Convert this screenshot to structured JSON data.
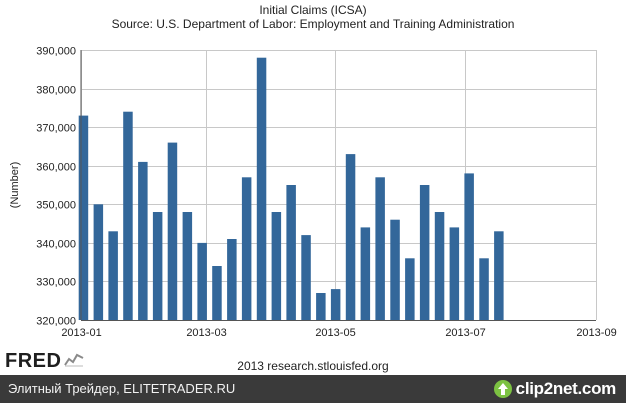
{
  "chart_data": {
    "type": "bar",
    "title": "Initial Claims (ICSA)",
    "subtitle": "Source: U.S. Department of Labor: Employment and Training Administration",
    "ylabel": "(Number)",
    "xlabel": "",
    "ylim": [
      320000,
      390000
    ],
    "y_ticks": [
      320000,
      330000,
      340000,
      350000,
      360000,
      370000,
      380000,
      390000
    ],
    "y_tick_labels": [
      "320,000",
      "330,000",
      "340,000",
      "350,000",
      "360,000",
      "370,000",
      "380,000",
      "390,000"
    ],
    "x_ticks": [
      "2013-01-01",
      "2013-03-01",
      "2013-05-01",
      "2013-07-01",
      "2013-09-01"
    ],
    "x_tick_labels": [
      "2013-01",
      "2013-03",
      "2013-05",
      "2013-07",
      "2013-09"
    ],
    "xlim": [
      "2013-01-01",
      "2013-09-01"
    ],
    "grid": true,
    "bar_color": "#33679a",
    "categories": [
      "2013-01-05",
      "2013-01-12",
      "2013-01-19",
      "2013-01-26",
      "2013-02-02",
      "2013-02-09",
      "2013-02-16",
      "2013-02-23",
      "2013-03-02",
      "2013-03-09",
      "2013-03-16",
      "2013-03-23",
      "2013-03-30",
      "2013-04-06",
      "2013-04-13",
      "2013-04-20",
      "2013-04-27",
      "2013-05-04",
      "2013-05-11",
      "2013-05-18",
      "2013-05-25",
      "2013-06-01",
      "2013-06-08",
      "2013-06-15",
      "2013-06-22",
      "2013-06-29",
      "2013-07-06",
      "2013-07-13",
      "2013-07-20",
      "2013-07-27"
    ],
    "values": [
      373000,
      350000,
      343000,
      374000,
      361000,
      348000,
      366000,
      348000,
      340000,
      334000,
      341000,
      357000,
      388000,
      348000,
      355000,
      342000,
      327000,
      328000,
      363000,
      344000,
      357000,
      346000,
      336000,
      355000,
      348000,
      344000,
      358000,
      336000,
      343000,
      null
    ]
  },
  "branding": {
    "fred_logo": "FRED",
    "credit": "2013 research.stlouisfed.org",
    "footer_text": "Элитный Трейдер, ELITETRADER.RU",
    "watermark": "clip2net.com"
  }
}
